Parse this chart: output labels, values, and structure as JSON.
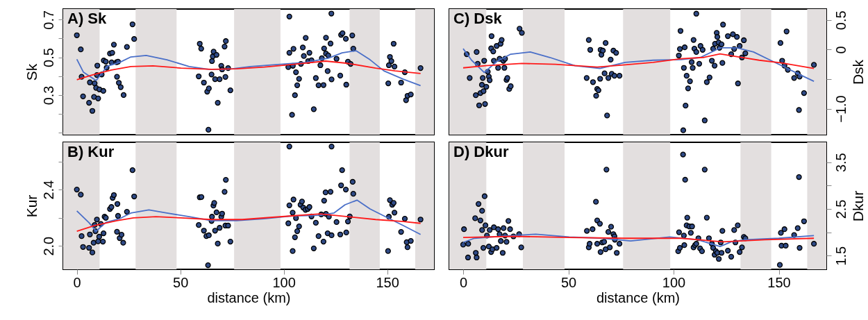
{
  "chart_data": [
    {
      "type": "scatter",
      "title": "A) Sk",
      "ylabel": "Sk",
      "xlim": [
        -6.6,
        172.6
      ],
      "ylim": [
        0.09,
        0.756
      ],
      "yticks": [
        {
          "value": 0.1,
          "label": null
        },
        {
          "value": 0.2,
          "label": null
        },
        0.3,
        {
          "value": 0.4,
          "label": null
        },
        0.5,
        {
          "value": 0.6,
          "label": null
        },
        0.7
      ],
      "tick_labels": "y",
      "bands": [
        {
          "axis": "x",
          "from": -6.6,
          "to": 11,
          "color": "#e3dfdf"
        },
        {
          "axis": "x",
          "from": 28.4,
          "to": 48.2,
          "color": "#e3dfdf"
        },
        {
          "axis": "x",
          "from": 76,
          "to": 98.4,
          "color": "#e3dfdf"
        },
        {
          "axis": "x",
          "from": 131.8,
          "to": 146.4,
          "color": "#e3dfdf"
        },
        {
          "axis": "x",
          "from": 163.5,
          "to": 172.6,
          "color": "#e3dfdf"
        }
      ],
      "series": [
        {
          "type": "scatter",
          "color": "#2f4a86",
          "x": [
            0,
            1.9,
            2.3,
            3,
            5.9,
            6.3,
            7.5,
            8.3,
            8.6,
            9.3,
            9.7,
            9.9,
            10.3,
            10.9,
            12,
            12.8,
            13,
            14,
            14.4,
            16,
            17.1,
            16.8,
            17.9,
            19.2,
            19.4,
            19.9,
            20.3,
            21.2,
            22.6,
            24.2,
            26.9,
            27.7,
            58.9,
            59.4,
            60.1,
            61.4,
            63,
            63.8,
            63.6,
            65.1,
            65.3,
            65.7,
            66.1,
            67.5,
            66.8,
            68.1,
            69,
            69.8,
            70.2,
            71.4,
            71.8,
            72,
            73.1,
            74.2,
            102.7,
            102.2,
            102.7,
            104,
            104.7,
            104.4,
            105.4,
            105.9,
            106.5,
            107.4,
            108.3,
            109.2,
            109.7,
            110.6,
            111.8,
            112.4,
            113.4,
            114.5,
            115.5,
            116.8,
            117.7,
            118.4,
            119.2,
            119.5,
            120.4,
            120.4,
            121.2,
            121.5,
            122.6,
            123,
            123.1,
            125.5,
            127.3,
            127.7,
            128.4,
            130,
            130.2,
            131,
            132.3,
            133.1,
            133.6,
            150.5,
            150.8,
            151.3,
            152,
            153.1,
            153.5,
            156.7,
            158.5,
            159.1,
            159.8,
            161.4,
            166.1
          ],
          "values": [
            0.617,
            0.542,
            0.397,
            0.293,
            0.259,
            0.367,
            0.216,
            0.29,
            0.362,
            0.338,
            0.406,
            0.456,
            0.282,
            0.33,
            0.409,
            0.322,
            0.483,
            0.477,
            0.445,
            0.52,
            0.524,
            0.473,
            0.567,
            0.474,
            0.397,
            0.477,
            0.365,
            0.342,
            0.3,
            0.555,
            0.675,
            0.597,
            0.399,
            0.572,
            0.546,
            0.366,
            0.318,
            0.335,
            0.116,
            0.409,
            0.48,
            0.505,
            0.53,
            0.513,
            0.384,
            0.259,
            0.384,
            0.455,
            0.436,
            0.557,
            0.396,
            0.586,
            0.443,
            0.325,
            0.716,
            0.448,
            0.524,
            0.195,
            0.545,
            0.455,
            0.299,
            0.421,
            0.352,
            0.386,
            0.465,
            0.552,
            0.507,
            0.603,
            0.48,
            0.524,
            0.484,
            0.225,
            0.39,
            0.352,
            0.458,
            0.495,
            0.353,
            0.547,
            0.604,
            0.52,
            0.427,
            0.51,
            0.573,
            0.732,
            0.383,
            0.492,
            0.403,
            0.619,
            0.628,
            0.598,
            0.355,
            0.477,
            0.465,
            0.616,
            0.546,
            0.362,
            0.458,
            0.502,
            0.48,
            0.572,
            0.451,
            0.366,
            0.421,
            0.273,
            0.296,
            0.303,
            0.443
          ]
        },
        {
          "type": "line",
          "color": "#4a6fc8",
          "x": [
            0,
            3.2,
            9.3,
            14.7,
            20.7,
            26.1,
            33.5,
            43.5,
            54.3,
            63.7,
            73.1,
            83.9,
            97.3,
            110.8,
            121.5,
            128.2,
            134.9,
            141.7,
            148.4,
            157.8,
            166.1
          ],
          "values": [
            0.49,
            0.421,
            0.377,
            0.453,
            0.473,
            0.502,
            0.51,
            0.487,
            0.451,
            0.436,
            0.436,
            0.451,
            0.462,
            0.473,
            0.495,
            0.524,
            0.535,
            0.487,
            0.428,
            0.384,
            0.35
          ]
        },
        {
          "type": "line",
          "color": "#ff1a1a",
          "x": [
            0,
            7.3,
            16.7,
            26.1,
            36.8,
            50.3,
            65.1,
            77.2,
            90.6,
            104,
            120.2,
            130.9,
            144.4,
            153.8,
            166.1
          ],
          "values": [
            0.381,
            0.406,
            0.433,
            0.451,
            0.455,
            0.443,
            0.436,
            0.439,
            0.448,
            0.462,
            0.48,
            0.468,
            0.443,
            0.428,
            0.414
          ]
        }
      ]
    },
    {
      "type": "scatter",
      "title": "B) Kur",
      "ylabel": "Kur",
      "xlabel": "distance (km)",
      "xlim": [
        -6.6,
        172.6
      ],
      "xticks": [
        0,
        50,
        100,
        150
      ],
      "ylim": [
        1.833,
        2.736
      ],
      "yticks": [
        {
          "value": 2,
          "label": "2.0"
        },
        {
          "value": 2.2,
          "label": null
        },
        2.4,
        {
          "value": 2.6,
          "label": null
        }
      ],
      "bands": [
        {
          "axis": "x",
          "from": -6.6,
          "to": 11,
          "color": "#e3dfdf"
        },
        {
          "axis": "x",
          "from": 28.4,
          "to": 48.2,
          "color": "#e3dfdf"
        },
        {
          "axis": "x",
          "from": 76,
          "to": 98.4,
          "color": "#e3dfdf"
        },
        {
          "axis": "x",
          "from": 131.8,
          "to": 146.4,
          "color": "#e3dfdf"
        },
        {
          "axis": "x",
          "from": 163.5,
          "to": 172.6,
          "color": "#e3dfdf"
        }
      ],
      "series": [
        {
          "type": "scatter",
          "color": "#2f4a86",
          "x": [
            0,
            1.9,
            2.3,
            3,
            5.9,
            6.3,
            7.5,
            8.1,
            8.6,
            9,
            9.7,
            10.3,
            10.8,
            11.6,
            12.6,
            12.9,
            13.4,
            14,
            16,
            16.7,
            17.3,
            17.9,
            19.4,
            19.6,
            19.9,
            20.7,
            21.6,
            22.4,
            24.2,
            26.9,
            27.7,
            58.9,
            59.4,
            60.2,
            61.4,
            62.6,
            63.8,
            63.4,
            65.1,
            65.3,
            66,
            66.4,
            66.8,
            67.5,
            68.1,
            69,
            69.8,
            70.2,
            71.4,
            72,
            71.8,
            73.1,
            74.2,
            102.2,
            102.7,
            102.7,
            104.3,
            104.7,
            104.3,
            105.4,
            105.9,
            106.5,
            107.4,
            108.1,
            108.8,
            109.4,
            110.5,
            111.6,
            112.4,
            113.4,
            114.5,
            115.5,
            116.8,
            118.1,
            119.2,
            119.5,
            120.2,
            120.4,
            121.2,
            121.8,
            122.6,
            123.1,
            123.1,
            125.5,
            127.3,
            127.7,
            128.2,
            130,
            130.2,
            131,
            131.9,
            133.3,
            133.6,
            150.4,
            150.8,
            151.3,
            152.4,
            153.1,
            153.5,
            156.7,
            158.5,
            159.4,
            159.8,
            161.4,
            166.1
          ],
          "values": [
            2.4,
            2.364,
            2.069,
            1.992,
            1.986,
            2.081,
            1.953,
            2.022,
            2.148,
            2.104,
            2.187,
            2.032,
            2.065,
            2.156,
            2.03,
            2.089,
            2.207,
            2.199,
            2.262,
            2.276,
            2.341,
            2.361,
            2.1,
            2.298,
            2.213,
            2.055,
            2.079,
            2.022,
            2.242,
            2.538,
            2.351,
            2.148,
            2.345,
            2.347,
            2.108,
            2.069,
            2.075,
            1.862,
            2.177,
            2.207,
            2.286,
            2.305,
            2.108,
            2.238,
            2.016,
            2.128,
            2.207,
            2.229,
            2.384,
            2.469,
            2.144,
            2.144,
            2.03,
            2.16,
            2.288,
            2.706,
            1.963,
            2.329,
            2.236,
            2.061,
            2.197,
            2.104,
            2.138,
            2.292,
            2.315,
            2.272,
            2.256,
            2.262,
            2.276,
            2.209,
            1.982,
            2.164,
            2.069,
            2.223,
            2.03,
            2.321,
            2.38,
            2.227,
            2.089,
            2.207,
            2.384,
            2.075,
            2.706,
            2.169,
            2.081,
            2.43,
            2.538,
            2.4,
            2.095,
            2.173,
            2.209,
            2.455,
            2.37,
            1.963,
            2.207,
            2.325,
            2.292,
            2.305,
            2.236,
            2.099,
            2.193,
            2.026,
            1.99,
            2.035,
            2.187
          ]
        },
        {
          "type": "line",
          "color": "#4a6fc8",
          "x": [
            0,
            5.9,
            9.3,
            14,
            20.7,
            26.1,
            34.8,
            43.5,
            54.3,
            65.1,
            77.2,
            90.6,
            104,
            117.5,
            124.2,
            129.6,
            135.4,
            141.7,
            149.7,
            157.8,
            166.1
          ],
          "values": [
            2.248,
            2.164,
            2.104,
            2.167,
            2.193,
            2.233,
            2.256,
            2.233,
            2.207,
            2.179,
            2.179,
            2.193,
            2.213,
            2.217,
            2.233,
            2.292,
            2.325,
            2.262,
            2.203,
            2.144,
            2.081
          ]
        },
        {
          "type": "line",
          "color": "#ff1a1a",
          "x": [
            0,
            8.6,
            19.4,
            27.4,
            38.2,
            50.3,
            65.1,
            79.9,
            94.6,
            104,
            117.5,
            130.9,
            144.4,
            157.8,
            166.1
          ],
          "values": [
            2.104,
            2.144,
            2.179,
            2.199,
            2.207,
            2.199,
            2.187,
            2.187,
            2.203,
            2.213,
            2.227,
            2.207,
            2.187,
            2.173,
            2.16
          ]
        }
      ]
    },
    {
      "type": "scatter",
      "title": "C) Dsk",
      "y2label": "Dsk",
      "xlim": [
        -6.6,
        172.6
      ],
      "y2lim": [
        -1.44,
        0.685
      ],
      "y2ticks": [
        0.5,
        0,
        {
          "value": -0.5,
          "label": null
        },
        {
          "value": -1.0,
          "label": "−1.0"
        }
      ],
      "tick_labels": "y",
      "bands": [
        {
          "axis": "x",
          "from": -6.6,
          "to": 11,
          "color": "#e3dfdf"
        },
        {
          "axis": "x",
          "from": 28.4,
          "to": 48.2,
          "color": "#e3dfdf"
        },
        {
          "axis": "x",
          "from": 76,
          "to": 98.4,
          "color": "#e3dfdf"
        },
        {
          "axis": "x",
          "from": 131.8,
          "to": 146.4,
          "color": "#e3dfdf"
        },
        {
          "axis": "x",
          "from": 163.5,
          "to": 172.6,
          "color": "#e3dfdf"
        }
      ],
      "series": [
        {
          "type": "scatter",
          "axis": "y2",
          "color": "#2f4a86",
          "x": [
            1.7,
            3.1,
            6,
            6.4,
            6.9,
            7.6,
            8.2,
            8.9,
            9.3,
            9.7,
            10,
            10.4,
            11,
            11.7,
            12.2,
            12.6,
            13.3,
            13.5,
            14.3,
            14.6,
            15.9,
            16.6,
            17.3,
            17.8,
            18.3,
            19.1,
            19.6,
            19.9,
            20.6,
            21,
            21.9,
            22.6,
            26.8,
            27.9,
            58.7,
            59.7,
            60.4,
            61.7,
            63.2,
            63.7,
            64.3,
            65.1,
            65.3,
            65.7,
            66.4,
            67.2,
            67.7,
            68.4,
            69,
            70.1,
            70.6,
            71.4,
            71.9,
            72.7,
            74.3,
            102.5,
            103,
            103.3,
            104.6,
            104.9,
            105.3,
            105.7,
            106.2,
            106.9,
            107.8,
            108.6,
            109.1,
            109.5,
            109.9,
            110.8,
            110.8,
            112.2,
            112.8,
            113.8,
            114.8,
            115.8,
            117.1,
            118.2,
            118.8,
            119.5,
            119.7,
            120.5,
            120.8,
            121.4,
            121.8,
            122.8,
            123.2,
            123.5,
            125.8,
            127.4,
            128.2,
            128.8,
            130.1,
            130.6,
            131.4,
            132.5,
            133.4,
            134.1,
            150.8,
            151.6,
            152.7,
            153.7,
            154.3,
            157.3,
            159,
            159.9,
            159.6,
            162,
            166.7
          ],
          "values": [
            -0.079,
            -0.481,
            -0.773,
            -0.042,
            -0.241,
            -0.944,
            -0.736,
            -0.597,
            -0.481,
            -0.704,
            -0.19,
            -0.921,
            -0.63,
            -0.375,
            -0.458,
            -0.519,
            0.019,
            0.227,
            -0.032,
            -0.19,
            0.06,
            -0.31,
            -0.157,
            0.097,
            0.162,
            -0.19,
            -0.31,
            -0.157,
            -0.514,
            -0.481,
            -0.667,
            -0.62,
            0.352,
            0.282,
            -0.481,
            0.162,
            -0.005,
            -0.551,
            -0.782,
            -0.667,
            -0.69,
            -0.495,
            -0.005,
            -0.088,
            -0.019,
            -0.403,
            0.111,
            -1.116,
            -0.481,
            -0.171,
            -0.412,
            -0.019,
            -0.444,
            -0.056,
            -0.444,
            -0.102,
            0.009,
            0.315,
            -1.366,
            -0.31,
            0.037,
            -0.949,
            -0.444,
            -0.657,
            -0.537,
            -0.213,
            -0.31,
            0.162,
            0.014,
            0.606,
            -0.042,
            -0.241,
            0.06,
            -0.005,
            -1.199,
            -0.551,
            -0.472,
            -0.19,
            0.014,
            -0.273,
            0.097,
            0.282,
            0.213,
            0.12,
            0.028,
            0.088,
            -0.227,
            0.421,
            0.227,
            -0.079,
            0.259,
            0.009,
            0.213,
            -0.574,
            0.06,
            -0.134,
            0.157,
            -0.065,
            0.111,
            -0.19,
            -0.273,
            0.306,
            -0.343,
            -0.481,
            -0.403,
            -0.458,
            -1.023,
            -0.736,
            -0.259
          ]
        },
        {
          "type": "line",
          "axis": "y2",
          "color": "#4a6fc8",
          "x": [
            0,
            4,
            10,
            15.9,
            22.6,
            31.9,
            41.2,
            53.1,
            65,
            77,
            90.3,
            103.5,
            112.8,
            122.1,
            130.1,
            138,
            146,
            154,
            160.6,
            166.7
          ],
          "values": [
            0.014,
            -0.181,
            -0.389,
            -0.204,
            -0.079,
            -0.042,
            -0.134,
            -0.273,
            -0.319,
            -0.218,
            -0.181,
            -0.171,
            -0.134,
            0.028,
            0.028,
            -0.042,
            -0.181,
            -0.319,
            -0.435,
            -0.537
          ]
        },
        {
          "type": "line",
          "axis": "y2",
          "color": "#ff1a1a",
          "x": [
            0,
            10.6,
            27.9,
            43.8,
            63.7,
            77,
            90.3,
            103.5,
            114.2,
            122.1,
            130.1,
            140.7,
            151.3,
            166.7
          ],
          "values": [
            -0.31,
            -0.273,
            -0.236,
            -0.25,
            -0.296,
            -0.259,
            -0.218,
            -0.157,
            -0.134,
            -0.074,
            -0.12,
            -0.181,
            -0.227,
            -0.319
          ]
        }
      ]
    },
    {
      "type": "scatter",
      "title": "D) Dkur",
      "y2label": "Dkur",
      "xlabel": "distance (km)",
      "xlim": [
        -6.6,
        172.6
      ],
      "xticks": [
        0,
        50,
        100,
        150
      ],
      "y2lim": [
        1.206,
        3.926
      ],
      "y2ticks": [
        1.5,
        {
          "value": 2.0,
          "label": null
        },
        2.5,
        {
          "value": 3.0,
          "label": null
        },
        3.5
      ],
      "bands": [
        {
          "axis": "x",
          "from": -6.6,
          "to": 11,
          "color": "#e3dfdf"
        },
        {
          "axis": "x",
          "from": 28.4,
          "to": 48.2,
          "color": "#e3dfdf"
        },
        {
          "axis": "x",
          "from": 76,
          "to": 98.4,
          "color": "#e3dfdf"
        },
        {
          "axis": "x",
          "from": 131.8,
          "to": 146.4,
          "color": "#e3dfdf"
        },
        {
          "axis": "x",
          "from": 163.5,
          "to": 172.6,
          "color": "#e3dfdf"
        }
      ],
      "series": [
        {
          "type": "scatter",
          "axis": "y2",
          "color": "#2f4a86",
          "x": [
            0,
            0.4,
            2.4,
            2.3,
            6,
            6.4,
            5.7,
            7.3,
            8.2,
            9,
            9,
            9.6,
            10.2,
            10.6,
            11.3,
            12.2,
            12.6,
            13.3,
            13.9,
            14.6,
            15.9,
            16.6,
            17.3,
            17.9,
            18.8,
            19.2,
            19.9,
            20.6,
            21.5,
            22.3,
            23.9,
            26.6,
            27.6,
            58.8,
            59.7,
            60.1,
            61.5,
            63.1,
            63.7,
            63.7,
            65,
            65.3,
            66.1,
            67,
            67.7,
            68.1,
            69,
            69.7,
            70.3,
            71.4,
            71.9,
            72.1,
            73,
            74.3,
            102.2,
            102.6,
            103,
            104.5,
            104.9,
            105.1,
            105.5,
            106.5,
            106.2,
            107.5,
            108.2,
            108.8,
            109.5,
            110.2,
            110.8,
            111.8,
            112.6,
            113.5,
            114.8,
            115.8,
            116.8,
            118.2,
            118.8,
            119.5,
            120.1,
            120.8,
            121.5,
            122.4,
            122.8,
            123.2,
            125.8,
            127.4,
            128.8,
            129.4,
            130.5,
            131.4,
            132.5,
            133.4,
            134.1,
            150.5,
            151,
            151.3,
            152.7,
            153.3,
            157.3,
            159,
            159.6,
            159.9,
            162,
            166.7
          ],
          "values": [
            1.735,
            2.065,
            1.753,
            1.459,
            1.559,
            1.459,
            2.3,
            2.606,
            2.253,
            2.459,
            2.047,
            1.665,
            2.771,
            2.147,
            1.929,
            1.694,
            2.047,
            1.576,
            1.635,
            2.106,
            1.665,
            2.065,
            1.959,
            1.812,
            1.559,
            2.088,
            1.929,
            1.794,
            2.241,
            2.065,
            1.912,
            1.959,
            1.676,
            2.029,
            1.676,
            1.753,
            2.065,
            2.653,
            2.253,
            1.753,
            2.182,
            1.576,
            1.782,
            1.794,
            1.635,
            3.341,
            2.006,
            1.676,
            2.118,
            1.959,
            1.912,
            1.841,
            1.559,
            1.753,
            1.594,
            2.0,
            1.665,
            3.664,
            1.929,
            1.724,
            3.124,
            2.312,
            2.147,
            2.124,
            1.988,
            2.124,
            1.676,
            1.724,
            1.753,
            1.871,
            1.653,
            1.594,
            3.341,
            2.312,
            1.871,
            1.753,
            1.665,
            1.518,
            1.594,
            1.559,
            1.429,
            1.782,
            1.559,
            2.029,
            1.606,
            1.476,
            2.047,
            1.782,
            2.147,
            1.576,
            1.676,
            1.9,
            1.871,
            1.3,
            1.988,
            1.712,
            2.065,
            1.712,
            1.941,
            2.088,
            3.182,
            1.665,
            2.235,
            1.753
          ]
        },
        {
          "type": "line",
          "axis": "y2",
          "color": "#4a6fc8",
          "x": [
            0,
            5.3,
            17.3,
            34.5,
            50.4,
            66.4,
            79.6,
            98.2,
            111.5,
            122.1,
            127.4,
            134.1,
            150,
            166.7
          ],
          "values": [
            1.782,
            1.871,
            1.912,
            1.959,
            1.9,
            1.871,
            1.812,
            1.9,
            1.841,
            1.694,
            1.794,
            1.841,
            1.871,
            1.929
          ]
        },
        {
          "type": "line",
          "axis": "y2",
          "color": "#ff1a1a",
          "x": [
            0,
            23.9,
            50.4,
            77,
            103.5,
            123.5,
            143.4,
            166.7
          ],
          "values": [
            1.888,
            1.912,
            1.888,
            1.871,
            1.871,
            1.794,
            1.841,
            1.871
          ]
        }
      ]
    }
  ]
}
